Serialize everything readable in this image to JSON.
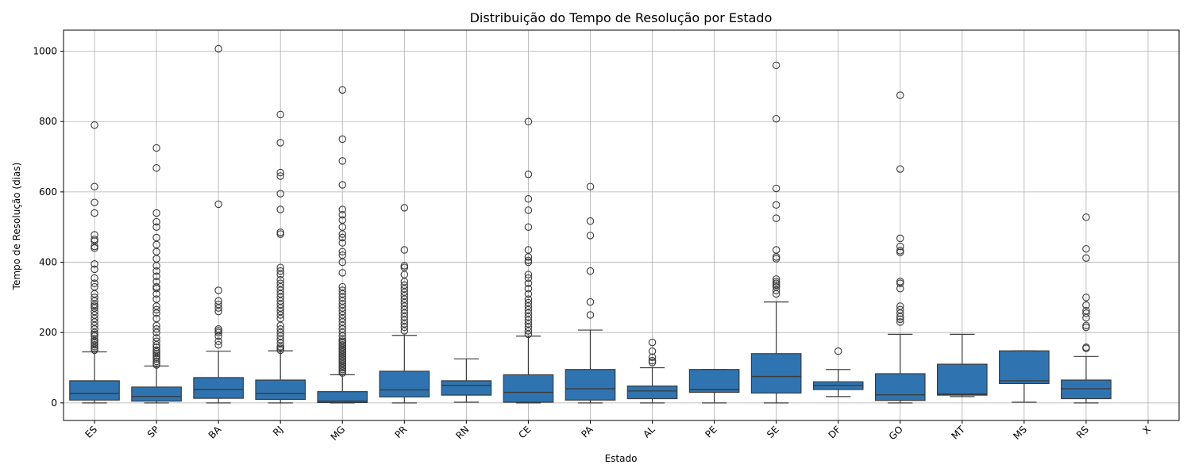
{
  "chart_data": {
    "type": "box",
    "title": "Distribuição do Tempo de Resolução por Estado",
    "xlabel": "Estado",
    "ylabel": "Tempo de Resolução (dias)",
    "ylim": [
      -50,
      1060
    ],
    "yticks": [
      0,
      200,
      400,
      600,
      800,
      1000
    ],
    "grid": true,
    "box_color": "#2f74b0",
    "line_color": "#3b3b3b",
    "grid_color": "#b0b0b0",
    "categories": [
      "ES",
      "SP",
      "BA",
      "RJ",
      "MG",
      "PR",
      "RN",
      "CE",
      "PA",
      "AL",
      "PE",
      "SE",
      "DF",
      "GO",
      "MT",
      "MS",
      "RS",
      "X"
    ],
    "boxes": [
      {
        "category": "ES",
        "whisker_low": 0,
        "q1": 8,
        "median": 27,
        "q3": 63,
        "whisker_high": 145,
        "outliers": [
          150,
          155,
          160,
          165,
          170,
          175,
          180,
          190,
          195,
          200,
          210,
          220,
          230,
          240,
          250,
          260,
          270,
          275,
          280,
          290,
          300,
          310,
          330,
          340,
          355,
          380,
          395,
          440,
          445,
          460,
          465,
          478,
          540,
          570,
          615,
          790
        ]
      },
      {
        "category": "SP",
        "whisker_low": 0,
        "q1": 5,
        "median": 18,
        "q3": 45,
        "whisker_high": 105,
        "outliers": [
          108,
          112,
          118,
          125,
          130,
          135,
          140,
          145,
          150,
          158,
          165,
          175,
          185,
          200,
          210,
          220,
          240,
          255,
          265,
          275,
          295,
          310,
          325,
          330,
          345,
          360,
          375,
          390,
          410,
          430,
          450,
          470,
          500,
          515,
          540,
          668,
          725
        ]
      },
      {
        "category": "BA",
        "whisker_low": 0,
        "q1": 13,
        "median": 38,
        "q3": 72,
        "whisker_high": 147,
        "outliers": [
          165,
          175,
          190,
          200,
          205,
          210,
          260,
          270,
          280,
          290,
          320,
          565,
          1007
        ]
      },
      {
        "category": "RJ",
        "whisker_low": 0,
        "q1": 10,
        "median": 27,
        "q3": 65,
        "whisker_high": 148,
        "outliers": [
          150,
          155,
          160,
          170,
          180,
          190,
          200,
          210,
          220,
          240,
          250,
          260,
          270,
          280,
          290,
          300,
          310,
          320,
          330,
          340,
          350,
          365,
          375,
          385,
          480,
          485,
          550,
          595,
          645,
          655,
          740,
          820
        ]
      },
      {
        "category": "MG",
        "whisker_low": 0,
        "q1": 1,
        "median": 5,
        "q3": 32,
        "whisker_high": 80,
        "outliers": [
          85,
          90,
          95,
          100,
          105,
          110,
          115,
          120,
          125,
          130,
          135,
          140,
          145,
          150,
          155,
          160,
          165,
          170,
          175,
          180,
          190,
          200,
          210,
          220,
          230,
          240,
          250,
          260,
          270,
          280,
          290,
          300,
          310,
          320,
          330,
          370,
          400,
          420,
          430,
          455,
          470,
          480,
          500,
          520,
          535,
          550,
          620,
          688,
          750,
          890
        ]
      },
      {
        "category": "PR",
        "whisker_low": 0,
        "q1": 17,
        "median": 37,
        "q3": 90,
        "whisker_high": 192,
        "outliers": [
          205,
          215,
          225,
          235,
          245,
          255,
          265,
          275,
          285,
          295,
          305,
          315,
          325,
          335,
          345,
          365,
          385,
          390,
          435,
          555
        ]
      },
      {
        "category": "RN",
        "whisker_low": 2,
        "q1": 22,
        "median": 50,
        "q3": 63,
        "whisker_high": 125,
        "outliers": []
      },
      {
        "category": "CE",
        "whisker_low": 0,
        "q1": 2,
        "median": 30,
        "q3": 80,
        "whisker_high": 190,
        "outliers": [
          195,
          205,
          215,
          225,
          235,
          245,
          255,
          265,
          275,
          285,
          295,
          310,
          325,
          340,
          355,
          365,
          400,
          405,
          415,
          435,
          500,
          548,
          580,
          650,
          800
        ]
      },
      {
        "category": "PA",
        "whisker_low": 0,
        "q1": 8,
        "median": 40,
        "q3": 95,
        "whisker_high": 207,
        "outliers": [
          250,
          287,
          375,
          476,
          517,
          615
        ]
      },
      {
        "category": "AL",
        "whisker_low": 0,
        "q1": 12,
        "median": 34,
        "q3": 48,
        "whisker_high": 100,
        "outliers": [
          115,
          120,
          130,
          147,
          172
        ]
      },
      {
        "category": "PE",
        "whisker_low": 0,
        "q1": 30,
        "median": 38,
        "q3": 95,
        "whisker_high": 95,
        "outliers": []
      },
      {
        "category": "SE",
        "whisker_low": 0,
        "q1": 28,
        "median": 75,
        "q3": 140,
        "whisker_high": 287,
        "outliers": [
          310,
          320,
          330,
          335,
          340,
          345,
          352,
          410,
          415,
          435,
          525,
          563,
          610,
          808,
          960
        ]
      },
      {
        "category": "DF",
        "whisker_low": 18,
        "q1": 38,
        "median": 50,
        "q3": 60,
        "whisker_high": 95,
        "outliers": [
          147
        ]
      },
      {
        "category": "GO",
        "whisker_low": 0,
        "q1": 7,
        "median": 23,
        "q3": 83,
        "whisker_high": 195,
        "outliers": [
          230,
          238,
          245,
          255,
          265,
          275,
          325,
          340,
          345,
          428,
          433,
          445,
          468,
          665,
          875
        ]
      },
      {
        "category": "MT",
        "whisker_low": 18,
        "q1": 22,
        "median": 25,
        "q3": 110,
        "whisker_high": 195,
        "outliers": []
      },
      {
        "category": "MS",
        "whisker_low": 2,
        "q1": 55,
        "median": 63,
        "q3": 148,
        "whisker_high": 148,
        "outliers": []
      },
      {
        "category": "RS",
        "whisker_low": 0,
        "q1": 12,
        "median": 40,
        "q3": 65,
        "whisker_high": 132,
        "outliers": [
          155,
          158,
          215,
          220,
          242,
          255,
          262,
          278,
          300,
          412,
          438,
          528
        ]
      },
      {
        "category": "X"
      }
    ]
  }
}
